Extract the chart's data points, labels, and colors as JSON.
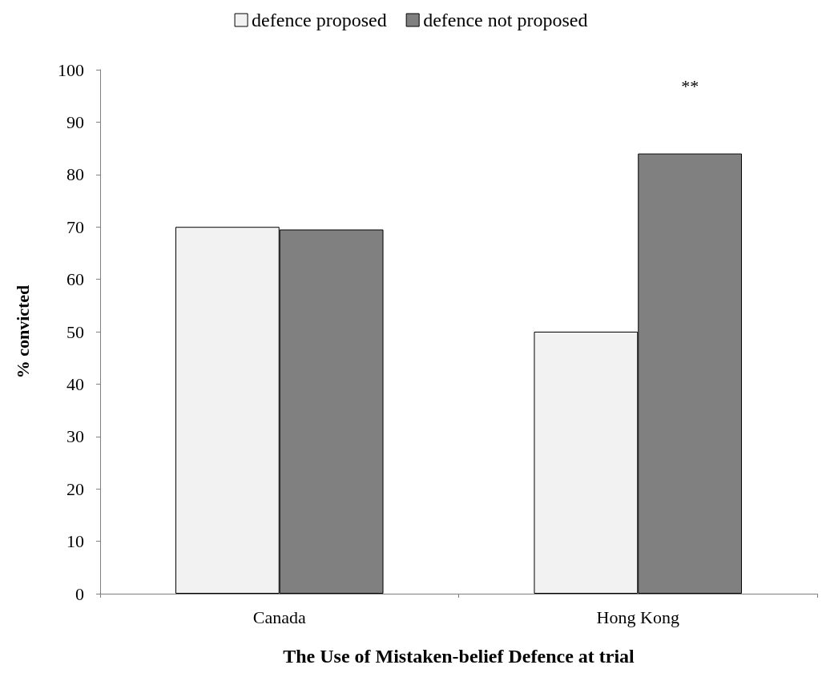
{
  "chart_data": {
    "type": "bar",
    "xlabel": "The Use of Mistaken-belief Defence at trial",
    "ylabel": "% convicted",
    "categories": [
      "Canada",
      "Hong Kong"
    ],
    "series": [
      {
        "name": "defence proposed",
        "color": "#f2f2f2",
        "values": [
          70,
          50
        ]
      },
      {
        "name": "defence not proposed",
        "color": "#808080",
        "values": [
          69.5,
          84
        ]
      }
    ],
    "ylim": [
      0,
      100
    ],
    "yticks": [
      0,
      10,
      20,
      30,
      40,
      50,
      60,
      70,
      80,
      90,
      100
    ],
    "grid": false,
    "legend": "top",
    "annotations": [
      "**"
    ]
  }
}
